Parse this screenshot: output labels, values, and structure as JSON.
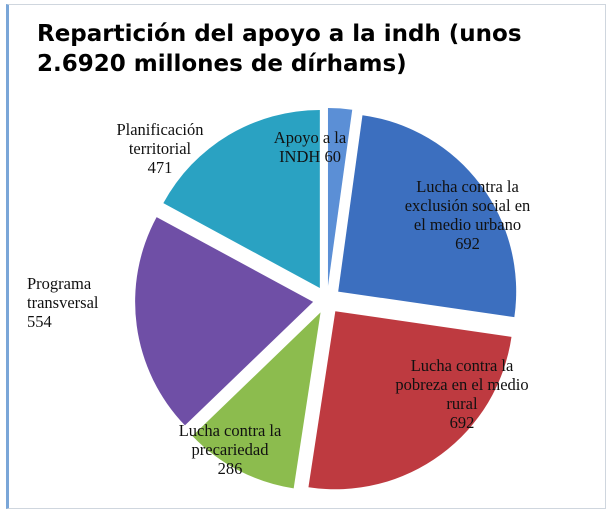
{
  "chart_data": {
    "type": "pie",
    "title": "Repartición del apoyo a la indh (unos 2.6920 millones de dírhams)",
    "categories": [
      "Apoyo a la INDH",
      "Lucha contra la exclusión social en el medio urbano",
      "Lucha contra la pobreza en el medio rural",
      "Lucha contra la precariedad",
      "Programa transversal",
      "Planificación territorial"
    ],
    "values": [
      60,
      692,
      692,
      286,
      554,
      471
    ],
    "colors": [
      "#5b8fd6",
      "#3c6fbf",
      "#be3a40",
      "#8cbc4e",
      "#6f4fa6",
      "#2aa2c2"
    ]
  }
}
